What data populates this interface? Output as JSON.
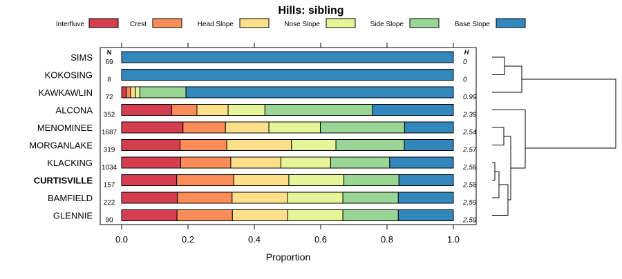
{
  "chart_data": {
    "type": "bar",
    "stacked": true,
    "orientation": "horizontal",
    "title": "Hills: sibling",
    "xlabel": "Proportion",
    "xlim": [
      0,
      1
    ],
    "xticks": [
      "0.0",
      "0.2",
      "0.4",
      "0.6",
      "0.8",
      "1.0"
    ],
    "n_header": "N",
    "h_header": "H",
    "legend_position": "top",
    "series": [
      {
        "name": "Interfluve",
        "color": "#d53e4f"
      },
      {
        "name": "Crest",
        "color": "#fc8d59"
      },
      {
        "name": "Head Slope",
        "color": "#fee08b"
      },
      {
        "name": "Nose Slope",
        "color": "#e6f598"
      },
      {
        "name": "Side Slope",
        "color": "#99d594"
      },
      {
        "name": "Base Slope",
        "color": "#3288bd"
      }
    ],
    "rows": [
      {
        "label": "SIMS",
        "bold": false,
        "n": "69",
        "h": "0",
        "values": [
          0,
          0,
          0,
          0,
          0,
          1.0
        ]
      },
      {
        "label": "KOKOSING",
        "bold": false,
        "n": "8",
        "h": "0",
        "values": [
          0,
          0,
          0,
          0,
          0,
          1.0
        ]
      },
      {
        "label": "KAWKAWLIN",
        "bold": false,
        "n": "72",
        "h": "0.99",
        "values": [
          0.014,
          0.013,
          0.014,
          0.014,
          0.139,
          0.806
        ]
      },
      {
        "label": "ALCONA",
        "bold": false,
        "n": "352",
        "h": "2.39",
        "values": [
          0.151,
          0.076,
          0.094,
          0.111,
          0.324,
          0.244
        ]
      },
      {
        "label": "MENOMINEE",
        "bold": false,
        "n": "1687",
        "h": "2.54",
        "values": [
          0.185,
          0.128,
          0.131,
          0.155,
          0.254,
          0.147
        ]
      },
      {
        "label": "MORGANLAKE",
        "bold": false,
        "n": "319",
        "h": "2.57",
        "values": [
          0.176,
          0.141,
          0.195,
          0.134,
          0.206,
          0.148
        ]
      },
      {
        "label": "KLACKING",
        "bold": false,
        "n": "1034",
        "h": "2.58",
        "values": [
          0.178,
          0.151,
          0.151,
          0.15,
          0.178,
          0.192
        ]
      },
      {
        "label": "CURTISVILLE",
        "bold": true,
        "n": "157",
        "h": "2.58",
        "values": [
          0.166,
          0.172,
          0.166,
          0.166,
          0.166,
          0.164
        ]
      },
      {
        "label": "BAMFIELD",
        "bold": false,
        "n": "222",
        "h": "2.59",
        "values": [
          0.168,
          0.165,
          0.167,
          0.167,
          0.167,
          0.166
        ]
      },
      {
        "label": "GLENNIE",
        "bold": false,
        "n": "90",
        "h": "2.59",
        "values": [
          0.167,
          0.167,
          0.167,
          0.166,
          0.167,
          0.166
        ]
      }
    ]
  }
}
